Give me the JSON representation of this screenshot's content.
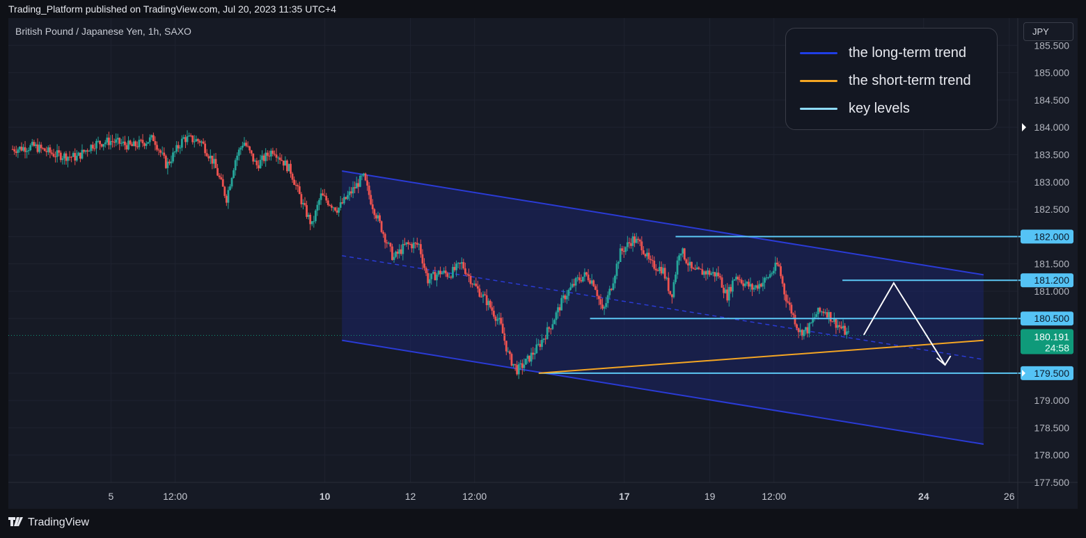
{
  "header": {
    "published": "Trading_Platform published on TradingView.com, Jul 20, 2023 11:35 UTC+4"
  },
  "symbol_label": "British Pound / Japanese Yen, 1h, SAXO",
  "currency_button": "JPY",
  "footer": {
    "brand": "TradingView",
    "logo_icon": "tradingview-logo-icon"
  },
  "colors": {
    "background": "#161a25",
    "grid": "#1f2330",
    "candle_up": "#26a69a",
    "candle_down": "#ef5350",
    "channel_line": "#2a3bd6",
    "channel_fill": "#1c2468",
    "short_trend": "#f5a623",
    "key_level": "#5cc8f5",
    "key_label_bg": "#55c3f5",
    "price_badge": "#0f9a7a"
  },
  "legend": {
    "items": [
      {
        "label": "the long-term trend",
        "color": "#1f3ee6"
      },
      {
        "label": "the short-term trend",
        "color": "#f5a623"
      },
      {
        "label": "key levels",
        "color": "#8fdcff"
      }
    ]
  },
  "chart_data": {
    "type": "candlestick",
    "title": "British Pound / Japanese Yen, 1h, SAXO",
    "y_unit": "JPY",
    "ylim": [
      177.5,
      186.0
    ],
    "x_range_days": [
      2.6,
      26.2
    ],
    "y_ticks": [
      "185.500",
      "185.000",
      "184.500",
      "184.000",
      "183.500",
      "183.000",
      "182.500",
      "182.000",
      "181.500",
      "181.200",
      "181.000",
      "180.500",
      "179.500",
      "179.000",
      "178.500",
      "178.000",
      "177.500"
    ],
    "x_ticks": [
      {
        "day": 5.0,
        "label": "5",
        "bold": false
      },
      {
        "day": 6.5,
        "label": "12:00",
        "bold": false
      },
      {
        "day": 10.0,
        "label": "10",
        "bold": true
      },
      {
        "day": 12.0,
        "label": "12",
        "bold": false
      },
      {
        "day": 13.5,
        "label": "12:00",
        "bold": false
      },
      {
        "day": 17.0,
        "label": "17",
        "bold": true
      },
      {
        "day": 19.0,
        "label": "19",
        "bold": false
      },
      {
        "day": 20.5,
        "label": "12:00",
        "bold": false
      },
      {
        "day": 24.0,
        "label": "24",
        "bold": true
      },
      {
        "day": 26.0,
        "label": "26",
        "bold": false
      }
    ],
    "price_path": [
      [
        2.7,
        183.6
      ],
      [
        3.2,
        183.65
      ],
      [
        3.7,
        183.5
      ],
      [
        4.2,
        183.45
      ],
      [
        4.6,
        183.7
      ],
      [
        5.0,
        183.75
      ],
      [
        5.5,
        183.65
      ],
      [
        6.0,
        183.8
      ],
      [
        6.3,
        183.3
      ],
      [
        6.7,
        183.8
      ],
      [
        7.1,
        183.75
      ],
      [
        7.4,
        183.35
      ],
      [
        7.7,
        182.7
      ],
      [
        7.9,
        183.4
      ],
      [
        8.1,
        183.75
      ],
      [
        8.4,
        183.3
      ],
      [
        8.8,
        183.6
      ],
      [
        9.2,
        183.2
      ],
      [
        9.5,
        182.55
      ],
      [
        9.7,
        182.2
      ],
      [
        9.9,
        182.75
      ],
      [
        10.3,
        182.5
      ],
      [
        10.6,
        182.8
      ],
      [
        10.9,
        183.1
      ],
      [
        11.1,
        182.6
      ],
      [
        11.4,
        182.0
      ],
      [
        11.6,
        181.6
      ],
      [
        11.9,
        181.85
      ],
      [
        12.2,
        181.85
      ],
      [
        12.4,
        181.2
      ],
      [
        12.7,
        181.35
      ],
      [
        12.9,
        181.3
      ],
      [
        13.2,
        181.5
      ],
      [
        13.5,
        181.1
      ],
      [
        13.8,
        180.8
      ],
      [
        14.1,
        180.4
      ],
      [
        14.3,
        179.8
      ],
      [
        14.5,
        179.55
      ],
      [
        14.7,
        179.7
      ],
      [
        15.0,
        180.0
      ],
      [
        15.3,
        180.4
      ],
      [
        15.6,
        180.9
      ],
      [
        15.9,
        181.2
      ],
      [
        16.1,
        181.3
      ],
      [
        16.3,
        181.15
      ],
      [
        16.5,
        180.6
      ],
      [
        16.7,
        181.1
      ],
      [
        16.9,
        181.7
      ],
      [
        17.2,
        181.95
      ],
      [
        17.4,
        181.85
      ],
      [
        17.6,
        181.5
      ],
      [
        17.9,
        181.4
      ],
      [
        18.1,
        180.9
      ],
      [
        18.3,
        181.8
      ],
      [
        18.6,
        181.35
      ],
      [
        18.9,
        181.35
      ],
      [
        19.2,
        181.3
      ],
      [
        19.4,
        180.9
      ],
      [
        19.6,
        181.3
      ],
      [
        19.8,
        181.15
      ],
      [
        20.0,
        181.05
      ],
      [
        20.3,
        181.2
      ],
      [
        20.6,
        181.5
      ],
      [
        20.75,
        180.95
      ],
      [
        20.9,
        180.65
      ],
      [
        21.1,
        180.25
      ],
      [
        21.3,
        180.3
      ],
      [
        21.5,
        180.6
      ],
      [
        21.7,
        180.65
      ],
      [
        21.9,
        180.45
      ],
      [
        22.1,
        180.3
      ],
      [
        22.25,
        180.191
      ]
    ],
    "channel": {
      "upper": [
        [
          10.4,
          183.2
        ],
        [
          25.4,
          181.3
        ]
      ],
      "lower": [
        [
          10.4,
          180.1
        ],
        [
          25.4,
          178.2
        ]
      ],
      "mid_dashed": [
        [
          10.4,
          181.65
        ],
        [
          25.4,
          179.75
        ]
      ]
    },
    "short_term_trend": [
      [
        15.0,
        179.5
      ],
      [
        25.4,
        180.1
      ]
    ],
    "key_levels": [
      {
        "price": 182.0,
        "label": "182.000",
        "from_day": 18.2
      },
      {
        "price": 181.2,
        "label": "181.200",
        "from_day": 22.1
      },
      {
        "price": 180.5,
        "label": "180.500",
        "from_day": 16.2
      },
      {
        "price": 179.5,
        "label": "179.500",
        "from_day": 15.0
      }
    ],
    "projection_arrow": [
      [
        22.6,
        180.2
      ],
      [
        23.3,
        181.15
      ],
      [
        24.5,
        179.65
      ]
    ],
    "last_price": {
      "value": "180.191",
      "countdown": "24:58"
    },
    "current_marker": "184.000"
  }
}
